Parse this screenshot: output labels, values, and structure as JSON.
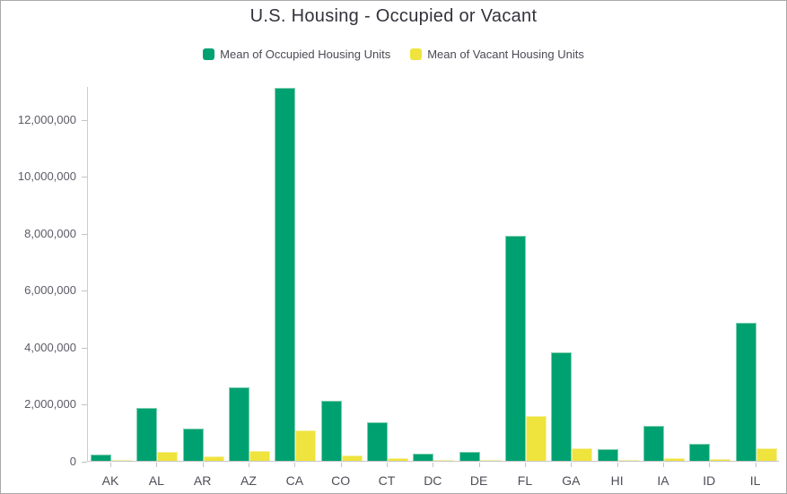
{
  "card": {
    "title": "U.S. Housing - Occupied or Vacant"
  },
  "legend": {
    "items": [
      {
        "label": "Mean of Occupied Housing Units",
        "color": "#00a171"
      },
      {
        "label": "Mean of Vacant Housing Units",
        "color": "#efe33d"
      }
    ]
  },
  "colors": {
    "occupied_fill": "#00a171",
    "occupied_edge": "#7fcfae",
    "vacant_fill": "#efe33d",
    "vacant_edge": "#f6f0a2",
    "axis_line": "#c9c9c9",
    "axis_text": "#5b5b66",
    "title_text": "#32323c"
  },
  "chart_data": {
    "type": "bar",
    "title": "U.S. Housing - Occupied or Vacant",
    "categories": [
      "AK",
      "AL",
      "AR",
      "AZ",
      "CA",
      "CO",
      "CT",
      "DC",
      "DE",
      "FL",
      "GA",
      "HI",
      "IA",
      "ID",
      "IL"
    ],
    "series": [
      {
        "name": "Mean of Occupied Housing Units",
        "color": "#00a171",
        "values": [
          230000,
          1850000,
          1150000,
          2600000,
          13100000,
          2100000,
          1350000,
          240000,
          330000,
          7900000,
          3800000,
          420000,
          1230000,
          600000,
          4850000
        ]
      },
      {
        "name": "Mean of Vacant Housing Units",
        "color": "#efe33d",
        "values": [
          40000,
          330000,
          160000,
          340000,
          1070000,
          180000,
          90000,
          20000,
          40000,
          1580000,
          450000,
          40000,
          90000,
          50000,
          450000
        ]
      }
    ],
    "xlabel": "",
    "ylabel": "",
    "ylim": [
      0,
      13160000
    ],
    "yticks": [
      0,
      2000000,
      4000000,
      6000000,
      8000000,
      10000000,
      12000000
    ],
    "grid": false,
    "legend_position": "top"
  }
}
